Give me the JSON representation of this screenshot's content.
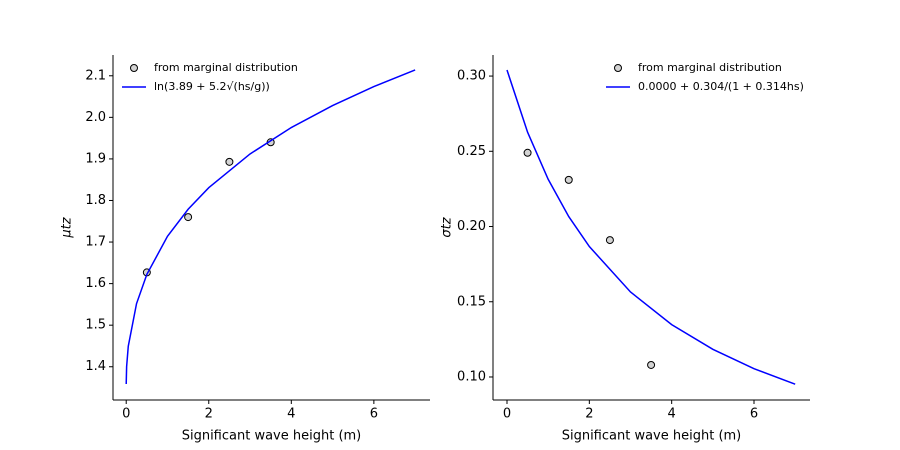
{
  "chart_data": [
    {
      "type": "scatter",
      "xlabel": "Significant wave height (m)",
      "ylabel": "μtz",
      "xlim": [
        -0.32,
        7.36
      ],
      "ylim": [
        1.32,
        2.15
      ],
      "xticks": [
        0,
        2,
        4,
        6
      ],
      "yticks": [
        1.4,
        1.5,
        1.6,
        1.7,
        1.8,
        1.9,
        {
          "value": 2.0,
          "label": "2.0"
        },
        2.1
      ],
      "grid": false,
      "legend": "upper left",
      "series": [
        {
          "name": "from marginal distribution",
          "type": "scatter",
          "color": "#d3d3d3",
          "edgecolor": "#000000",
          "x": [
            0.5,
            1.5,
            2.5,
            3.5
          ],
          "values": [
            1.627,
            1.76,
            1.893,
            1.94
          ]
        },
        {
          "name": "ln(3.89 + 5.2√(hs/g))",
          "type": "line",
          "color": "#0000ff",
          "x": [
            0,
            0.01,
            0.05,
            0.25,
            0.5,
            1,
            1.5,
            2,
            3,
            4,
            5,
            6,
            7
          ],
          "values": [
            1.3584,
            1.4003,
            1.4495,
            1.5518,
            1.6221,
            1.7138,
            1.7789,
            1.8307,
            1.9119,
            1.9755,
            2.0284,
            2.074,
            2.1141
          ]
        }
      ]
    },
    {
      "type": "scatter",
      "xlabel": "Significant wave height (m)",
      "ylabel": "σtz",
      "xlim": [
        -0.34,
        7.36
      ],
      "ylim": [
        0.0847,
        0.314
      ],
      "xticks": [
        0,
        2,
        4,
        6
      ],
      "yticks": [
        {
          "value": 0.1,
          "label": "0.10"
        },
        0.15,
        {
          "value": 0.2,
          "label": "0.20"
        },
        0.25,
        {
          "value": 0.3,
          "label": "0.30"
        }
      ],
      "grid": false,
      "legend": "upper right",
      "series": [
        {
          "name": "from marginal distribution",
          "type": "scatter",
          "color": "#d3d3d3",
          "edgecolor": "#000000",
          "x": [
            0.5,
            1.5,
            2.5,
            3.5
          ],
          "values": [
            0.249,
            0.231,
            0.191,
            0.108
          ]
        },
        {
          "name": "0.0000 + 0.304/(1 + 0.314hs)",
          "type": "line",
          "color": "#0000ff",
          "x": [
            0,
            0.5,
            1,
            1.5,
            2,
            3,
            4,
            5,
            6,
            7
          ],
          "values": [
            0.304,
            0.2627,
            0.2314,
            0.2066,
            0.1867,
            0.1565,
            0.1348,
            0.1184,
            0.1055,
            0.0952
          ]
        }
      ]
    }
  ]
}
